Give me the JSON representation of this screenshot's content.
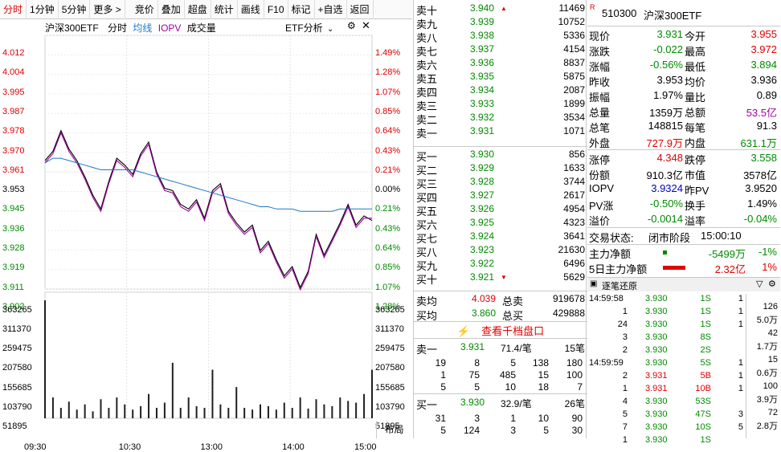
{
  "toolbar": {
    "items": [
      "分时",
      "1分钟",
      "5分钟",
      "更多 >",
      "竞价",
      "叠加",
      "超盘",
      "统计",
      "画线",
      "F10",
      "标记",
      "+自选",
      "返回"
    ]
  },
  "chart": {
    "title": "沪深300ETF",
    "mode": "分时",
    "avg_label": "均线",
    "iopv_label": "IOPV",
    "vol_label": "成交量",
    "etf_analysis": "ETF分析",
    "price_ticks": [
      "4.012",
      "4.004",
      "3.995",
      "3.987",
      "3.978",
      "3.970",
      "3.961",
      "3.953",
      "3.945",
      "3.936",
      "3.928",
      "3.919",
      "3.911",
      "3.902"
    ],
    "pct_ticks": [
      "1.49%",
      "1.28%",
      "1.07%",
      "0.85%",
      "0.64%",
      "0.43%",
      "0.21%",
      "0.00%",
      "0.21%",
      "0.43%",
      "0.64%",
      "0.85%",
      "1.07%",
      "1.28%"
    ],
    "vol_ticks": [
      "363265",
      "311370",
      "259475",
      "207580",
      "155685",
      "103790",
      "51895"
    ],
    "time_ticks": [
      "09:30",
      "10:30",
      "13:00",
      "14:00",
      "15:00"
    ],
    "layout_btn": "布局",
    "colors": {
      "price": "#000000",
      "iopv": "#a000a0",
      "avg": "#1e78c8",
      "up": "#e00000",
      "down": "#008a00"
    }
  },
  "chart_data": {
    "type": "line",
    "x_range": [
      "09:30",
      "15:00"
    ],
    "ylim": [
      3.902,
      4.012
    ],
    "prev_close": 3.953,
    "series": [
      {
        "name": "沪深300ETF",
        "values": [
          3.957,
          3.961,
          3.97,
          3.962,
          3.957,
          3.95,
          3.942,
          3.936,
          3.948,
          3.958,
          3.955,
          3.951,
          3.96,
          3.965,
          3.952,
          3.945,
          3.944,
          3.938,
          3.936,
          3.94,
          3.932,
          3.944,
          3.947,
          3.935,
          3.93,
          3.926,
          3.929,
          3.918,
          3.922,
          3.914,
          3.907,
          3.911,
          3.902,
          3.909,
          3.925,
          3.916,
          3.923,
          3.93,
          3.938,
          3.929,
          3.933,
          3.931
        ]
      },
      {
        "name": "IOPV",
        "values": [
          3.956,
          3.96,
          3.969,
          3.961,
          3.956,
          3.949,
          3.941,
          3.935,
          3.947,
          3.957,
          3.954,
          3.95,
          3.959,
          3.964,
          3.951,
          3.944,
          3.943,
          3.937,
          3.935,
          3.939,
          3.931,
          3.943,
          3.946,
          3.934,
          3.929,
          3.925,
          3.928,
          3.917,
          3.921,
          3.913,
          3.906,
          3.91,
          3.901,
          3.908,
          3.924,
          3.915,
          3.922,
          3.929,
          3.937,
          3.928,
          3.932,
          3.932
        ]
      },
      {
        "name": "均线",
        "values": [
          3.956,
          3.958,
          3.958,
          3.957,
          3.956,
          3.955,
          3.954,
          3.953,
          3.953,
          3.953,
          3.953,
          3.953,
          3.952,
          3.951,
          3.95,
          3.949,
          3.948,
          3.947,
          3.946,
          3.945,
          3.944,
          3.943,
          3.942,
          3.941,
          3.94,
          3.939,
          3.938,
          3.937,
          3.937,
          3.936,
          3.936,
          3.936,
          3.935,
          3.935,
          3.935,
          3.935,
          3.935,
          3.936,
          3.936,
          3.936,
          3.936,
          3.936
        ]
      }
    ],
    "volume": [
      340000,
      60000,
      30000,
      48000,
      25000,
      40000,
      20000,
      55000,
      30000,
      60000,
      40000,
      25000,
      35000,
      70000,
      30000,
      45000,
      160000,
      30000,
      60000,
      35000,
      30000,
      140000,
      40000,
      30000,
      90000,
      30000,
      25000,
      40000,
      35000,
      25000,
      45000,
      30000,
      60000,
      28000,
      55000,
      40000,
      35000,
      60000,
      50000,
      45000,
      70000,
      140000
    ]
  },
  "book": {
    "asks": [
      {
        "name": "卖十",
        "price": "3.940",
        "vol": "11469",
        "arrow": "▲"
      },
      {
        "name": "卖九",
        "price": "3.939",
        "vol": "10752"
      },
      {
        "name": "卖八",
        "price": "3.938",
        "vol": "5336"
      },
      {
        "name": "卖七",
        "price": "3.937",
        "vol": "4154"
      },
      {
        "name": "卖六",
        "price": "3.936",
        "vol": "8837"
      },
      {
        "name": "卖五",
        "price": "3.935",
        "vol": "5875"
      },
      {
        "name": "卖四",
        "price": "3.934",
        "vol": "2087"
      },
      {
        "name": "卖三",
        "price": "3.933",
        "vol": "1899"
      },
      {
        "name": "卖二",
        "price": "3.932",
        "vol": "3534"
      },
      {
        "name": "卖一",
        "price": "3.931",
        "vol": "1071"
      }
    ],
    "bids": [
      {
        "name": "买一",
        "price": "3.930",
        "vol": "856"
      },
      {
        "name": "买二",
        "price": "3.929",
        "vol": "1633"
      },
      {
        "name": "买三",
        "price": "3.928",
        "vol": "3744"
      },
      {
        "name": "买四",
        "price": "3.927",
        "vol": "2617"
      },
      {
        "name": "买五",
        "price": "3.926",
        "vol": "4954"
      },
      {
        "name": "买六",
        "price": "3.925",
        "vol": "4323"
      },
      {
        "name": "买七",
        "price": "3.924",
        "vol": "3641"
      },
      {
        "name": "买八",
        "price": "3.923",
        "vol": "21630"
      },
      {
        "name": "买九",
        "price": "3.922",
        "vol": "6496"
      },
      {
        "name": "买十",
        "price": "3.921",
        "vol": "5629",
        "arrow": "▼"
      }
    ],
    "avg_sell_label": "卖均",
    "avg_sell": "4.039",
    "total_sell_label": "总卖",
    "total_sell": "919678",
    "avg_buy_label": "买均",
    "avg_buy": "3.860",
    "total_buy_label": "总买",
    "total_buy": "429888",
    "thousand_btn": "查看千档盘口",
    "ask1_queue": {
      "label": "卖一",
      "price": "3.931",
      "avg": "71.4/笔",
      "count": "15笔",
      "rows": [
        [
          "19",
          "8",
          "5",
          "138",
          "180"
        ],
        [
          "1",
          "75",
          "485",
          "15",
          "100"
        ],
        [
          "5",
          "5",
          "10",
          "18",
          "7"
        ]
      ]
    },
    "bid1_queue": {
      "label": "买一",
      "price": "3.930",
      "avg": "32.9/笔",
      "count": "26笔",
      "rows": [
        [
          "31",
          "3",
          "1",
          "10",
          "90"
        ],
        [
          "5",
          "124",
          "3",
          "5",
          "30"
        ]
      ]
    }
  },
  "info": {
    "code": "510300",
    "name": "沪深300ETF",
    "badge": "R",
    "rows1": [
      [
        "现价",
        "3.931",
        "今开",
        "3.955"
      ],
      [
        "涨跌",
        "-0.022",
        "最高",
        "3.972"
      ],
      [
        "涨幅",
        "-0.56%",
        "最低",
        "3.894"
      ],
      [
        "昨收",
        "3.953",
        "均价",
        "3.936"
      ],
      [
        "振幅",
        "1.97%",
        "量比",
        "0.89"
      ],
      [
        "总量",
        "1359万",
        "总额",
        "53.5亿"
      ],
      [
        "总笔",
        "148815",
        "每笔",
        "91.3"
      ],
      [
        "外盘",
        "727.9万",
        "内盘",
        "631.1万"
      ]
    ],
    "rows2": [
      [
        "涨停",
        "4.348",
        "跌停",
        "3.558"
      ],
      [
        "份额",
        "910.3亿",
        "市值",
        "3578亿"
      ],
      [
        "IOPV",
        "3.9324",
        "昨PV",
        "3.9520"
      ],
      [
        "PV涨",
        "-0.50%",
        "换手",
        "1.49%"
      ],
      [
        "溢价",
        "-0.0014",
        "溢率",
        "-0.04%"
      ]
    ],
    "status_label": "交易状态:",
    "status": "闭市阶段",
    "status_time": "15:00:10",
    "net1_label": "主力净额",
    "net1": "-5499万",
    "net1_pct": "-1%",
    "net5_label": "5日主力净额",
    "net5": "2.32亿",
    "net5_pct": "1%",
    "ticks_title": "逐笔还原",
    "ticks": [
      {
        "t": "14:59:58",
        "a": "",
        "p": "3.930",
        "n": "1S",
        "v": "1"
      },
      {
        "t": "",
        "a": "1",
        "p": "3.930",
        "n": "1S",
        "v": "1"
      },
      {
        "t": "",
        "a": "24",
        "p": "3.930",
        "n": "1S",
        "v": "1"
      },
      {
        "t": "",
        "a": "3",
        "p": "3.930",
        "n": "8S",
        "v": ""
      },
      {
        "t": "",
        "a": "2",
        "p": "3.930",
        "n": "2S",
        "v": ""
      },
      {
        "t": "14:59:59",
        "a": "",
        "p": "3.930",
        "n": "5S",
        "v": "1"
      },
      {
        "t": "",
        "a": "2",
        "p": "3.931",
        "n": "5B",
        "v": "1"
      },
      {
        "t": "",
        "a": "1",
        "p": "3.931",
        "n": "10B",
        "v": "1"
      },
      {
        "t": "",
        "a": "4",
        "p": "3.930",
        "n": "53S",
        "v": ""
      },
      {
        "t": "",
        "a": "5",
        "p": "3.930",
        "n": "47S",
        "v": "3"
      },
      {
        "t": "",
        "a": "7",
        "p": "3.930",
        "n": "10S",
        "v": "5"
      },
      {
        "t": "",
        "a": "1",
        "p": "3.930",
        "n": "1S",
        "v": ""
      }
    ],
    "tick_side": [
      [
        "126",
        "5.0万"
      ],
      [
        "42",
        "1.7万"
      ],
      [
        "15",
        "0.6万"
      ],
      [
        "100",
        "3.9万"
      ],
      [
        "72",
        "2.8万"
      ]
    ]
  }
}
